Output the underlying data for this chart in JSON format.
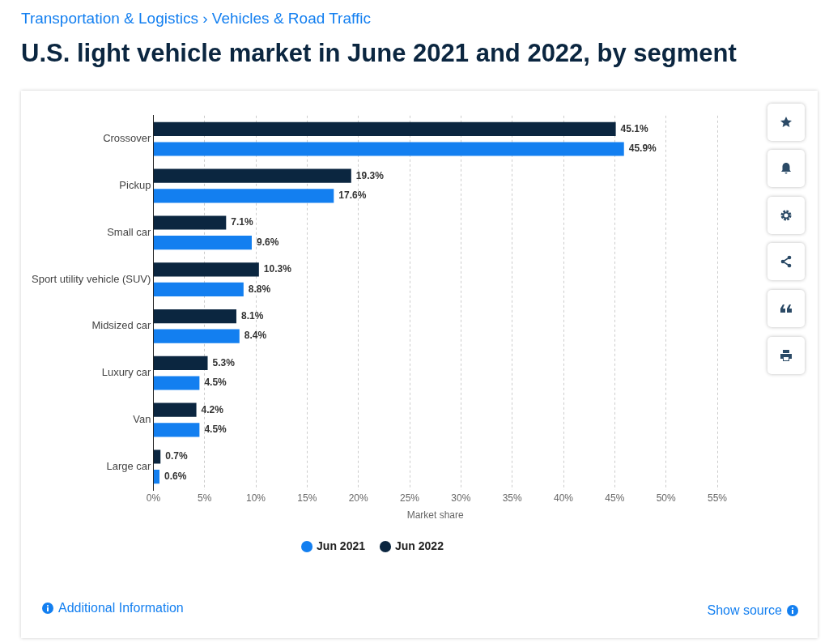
{
  "chart_data": {
    "type": "bar",
    "orientation": "horizontal",
    "subtitle": "Transportation & Logistics › Vehicles & Road Traffic",
    "title": "U.S. light vehicle market in June 2021 and 2022, by segment",
    "xlabel": "Market share",
    "categories": [
      "Crossover",
      "Pickup",
      "Small car",
      "Sport utility vehicle (SUV)",
      "Midsized car",
      "Luxury car",
      "Van",
      "Large car"
    ],
    "series": [
      {
        "name": "Jun 2021",
        "color": "#137ff0",
        "values": [
          45.9,
          17.6,
          9.6,
          8.8,
          8.4,
          4.5,
          4.5,
          0.6
        ],
        "value_labels": [
          "45.9%",
          "17.6%",
          "9.6%",
          "8.8%",
          "8.4%",
          "4.5%",
          "4.5%",
          "0.6%"
        ]
      },
      {
        "name": "Jun 2022",
        "color": "#0b2640",
        "values": [
          45.1,
          19.3,
          7.1,
          10.3,
          8.1,
          5.3,
          4.2,
          0.7
        ],
        "value_labels": [
          "45.1%",
          "19.3%",
          "7.1%",
          "10.3%",
          "8.1%",
          "5.3%",
          "4.2%",
          "0.7%"
        ]
      }
    ],
    "xlim": [
      0,
      55
    ],
    "xticks": [
      {
        "value": 0,
        "label": "0%"
      },
      {
        "value": 5,
        "label": "5%"
      },
      {
        "value": 10,
        "label": "10%"
      },
      {
        "value": 15,
        "label": "15%"
      },
      {
        "value": 20,
        "label": "20%"
      },
      {
        "value": 25,
        "label": "25%"
      },
      {
        "value": 30,
        "label": "30%"
      },
      {
        "value": 35,
        "label": "35%"
      },
      {
        "value": 40,
        "label": "40%"
      },
      {
        "value": 45,
        "label": "45%"
      },
      {
        "value": 50,
        "label": "50%"
      },
      {
        "value": 55,
        "label": "55%"
      }
    ],
    "grid": "x",
    "legend": "bottom",
    "annotations": [
      "Additional Information",
      "Show source"
    ]
  }
}
